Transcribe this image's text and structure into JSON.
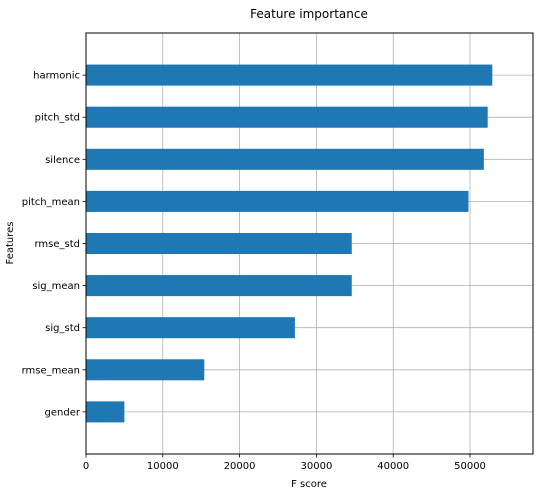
{
  "chart_data": {
    "type": "bar",
    "orientation": "horizontal",
    "title": "Feature importance",
    "xlabel": "F score",
    "ylabel": "Features",
    "categories": [
      "harmonic",
      "pitch_std",
      "silence",
      "pitch_mean",
      "rmse_std",
      "sig_mean",
      "sig_std",
      "rmse_mean",
      "gender"
    ],
    "values": [
      52900,
      52300,
      51800,
      49800,
      34600,
      34600,
      27200,
      15400,
      5000
    ],
    "xlim": [
      0,
      58200
    ],
    "xticks": [
      0,
      10000,
      20000,
      30000,
      40000,
      50000
    ],
    "xtick_labels": [
      "0",
      "10000",
      "20000",
      "30000",
      "40000",
      "50000"
    ],
    "grid": true,
    "legend": false,
    "colors": {
      "bar": "#1f77b4",
      "grid": "#b0b0b0",
      "axes": "#000000"
    }
  }
}
